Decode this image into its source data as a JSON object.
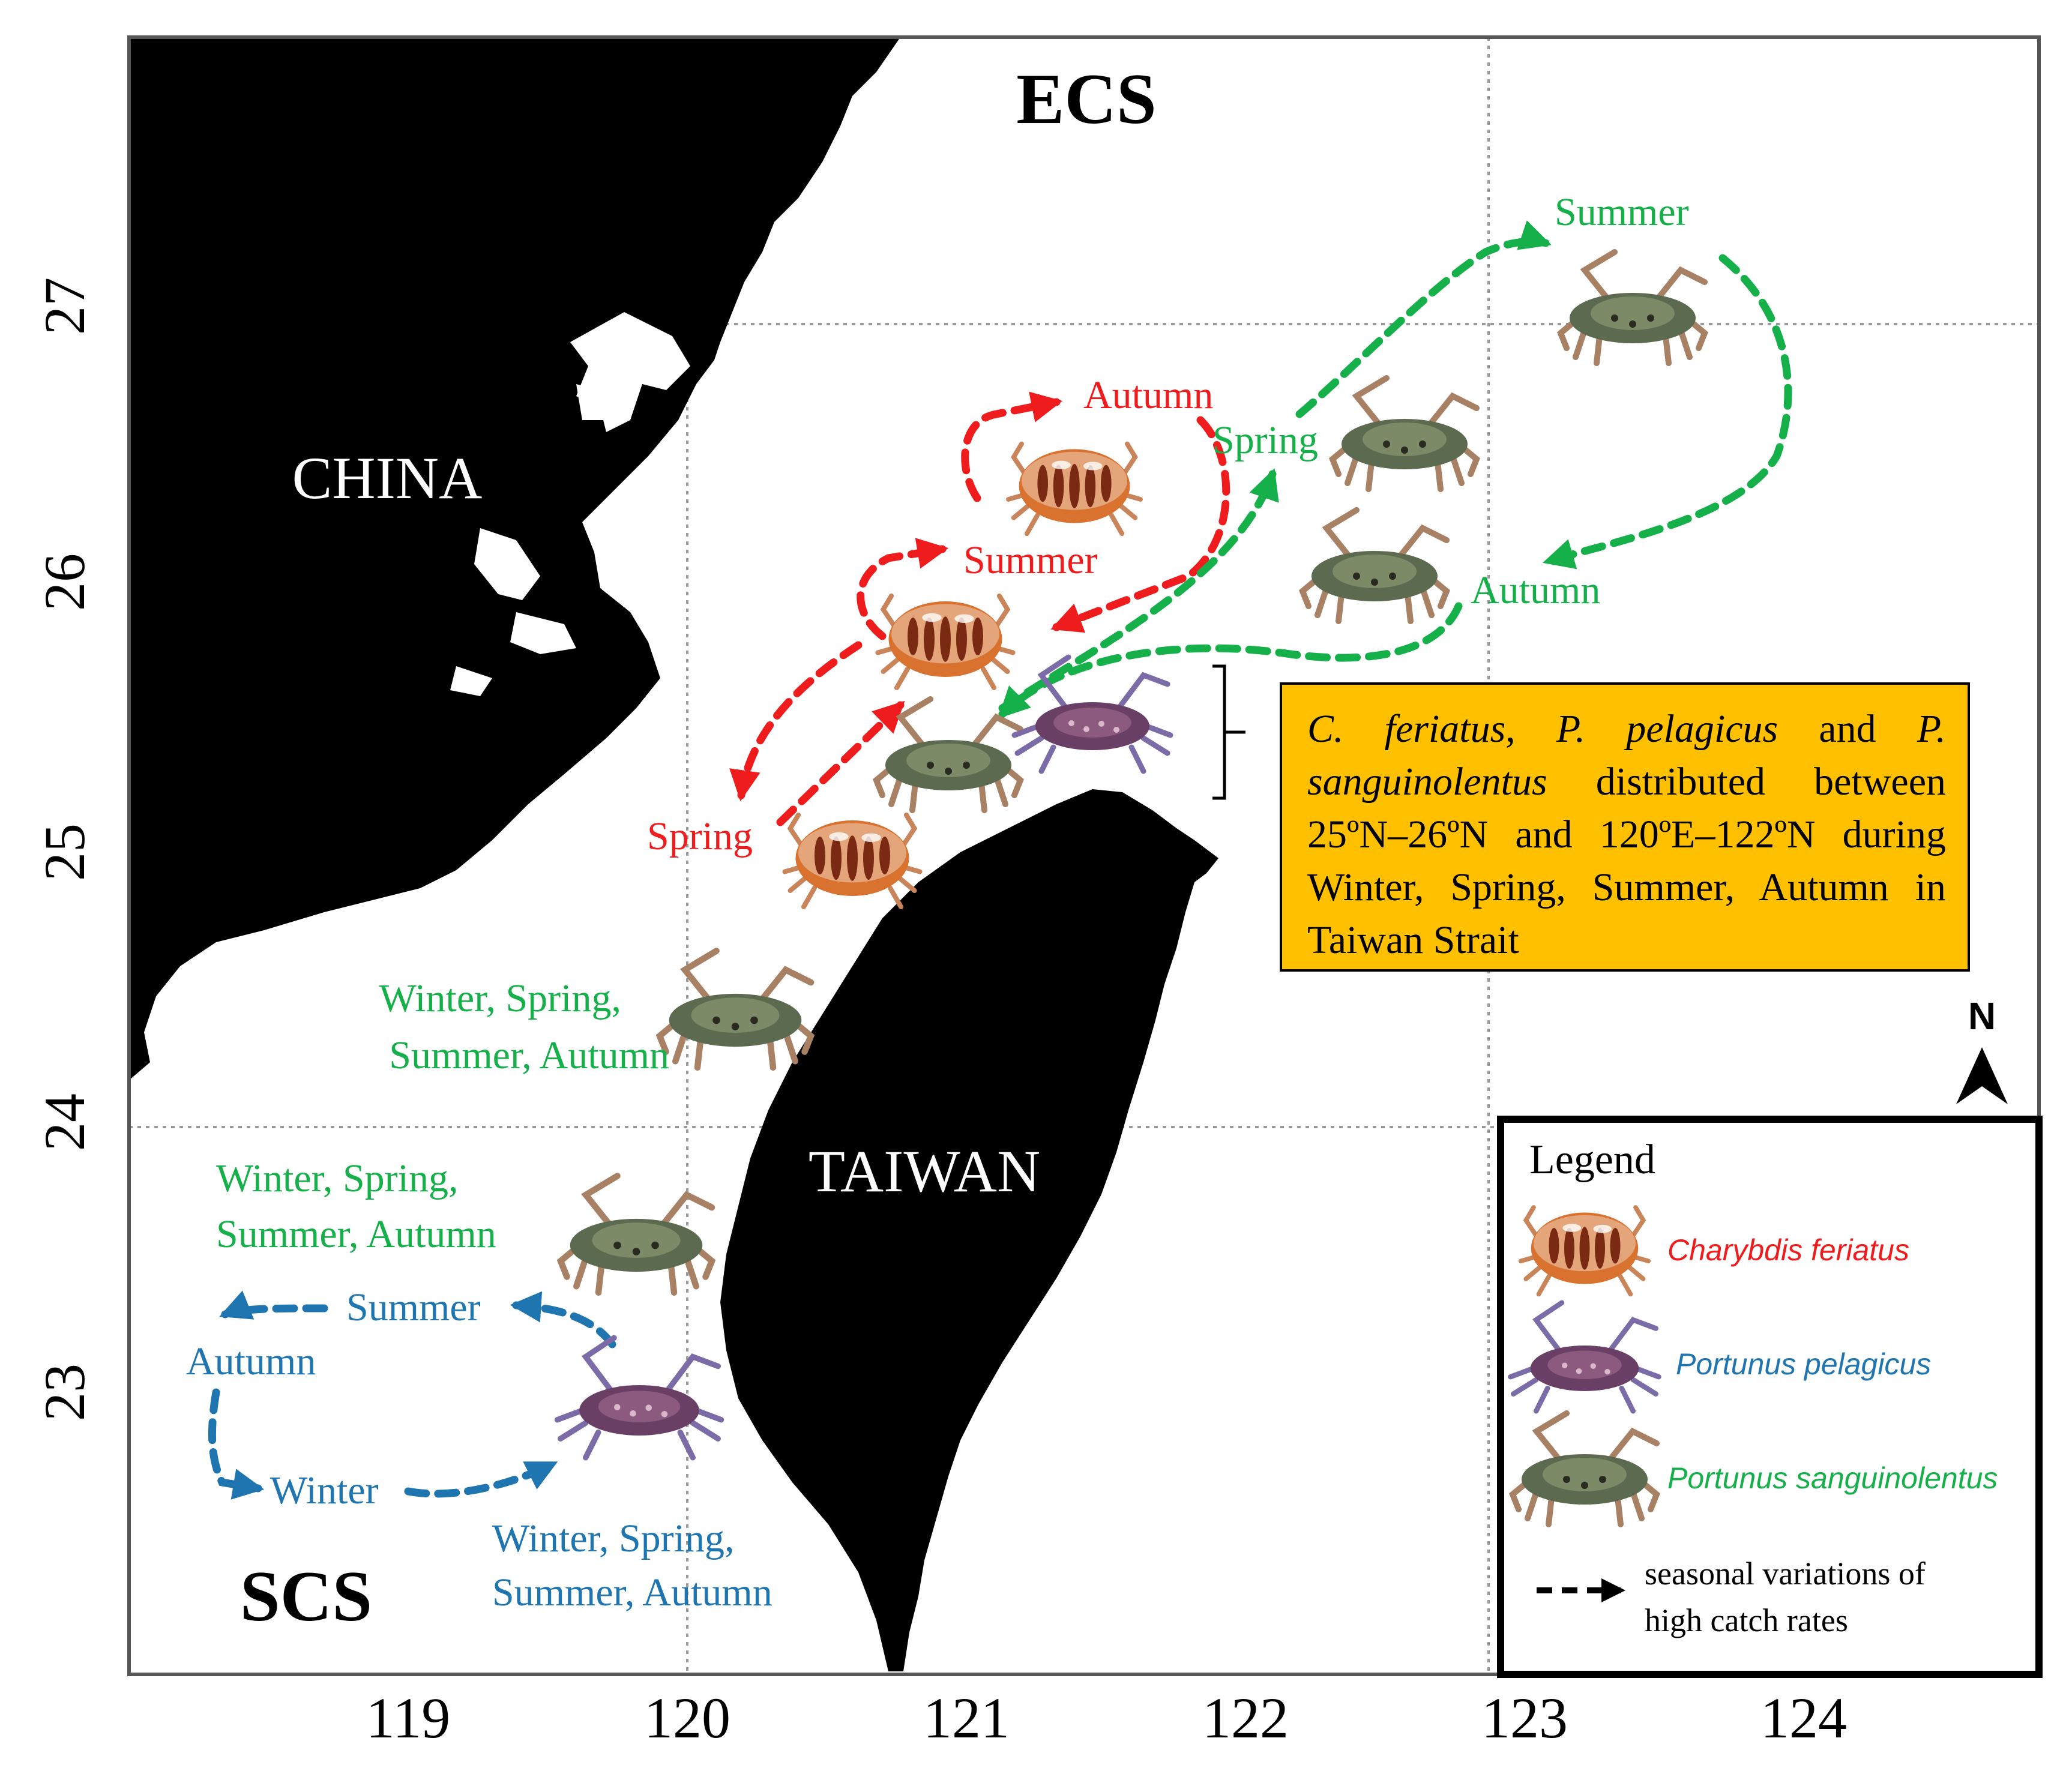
{
  "map": {
    "sea_labels": {
      "north": "ECS",
      "south": "SCS"
    },
    "land_labels": {
      "mainland": "CHINA",
      "island": "TAIWAN"
    },
    "axes": {
      "x_ticks": [
        "119",
        "120",
        "121",
        "122",
        "123",
        "124"
      ],
      "y_ticks": [
        "27",
        "26",
        "25",
        "24",
        "23"
      ]
    },
    "north_arrow": {
      "label": "N"
    },
    "colors": {
      "charybdis": "#EE1C1C",
      "pelagicus": "#1F75B0",
      "sanguinolentus": "#16B04A",
      "land": "#000000",
      "callout_fill": "#FFC000",
      "grid": "#9A9A9A"
    }
  },
  "labels": {
    "red": {
      "autumn": "Autumn",
      "summer": "Summer",
      "spring": "Spring"
    },
    "green": {
      "summer": "Summer",
      "spring": "Spring",
      "autumn": "Autumn",
      "mid_line1": "Winter, Spring,",
      "mid_line2": "Summer, Autumn",
      "south_line1": "Winter, Spring,",
      "south_line2": "Summer, Autumn"
    },
    "blue": {
      "summer": "Summer",
      "autumn": "Autumn",
      "winter": "Winter",
      "all_line1": "Winter, Spring,",
      "all_line2": "Summer, Autumn"
    }
  },
  "callout": {
    "species1": "C. feriatus",
    "sep1": ", ",
    "species2": "P. pelagicus",
    "sep2": " and ",
    "species3": "P. sanguinolentus",
    "body": " distributed between 25ºN–26ºN and 120ºE–122ºN during Winter, Spring, Summer, Autumn in Taiwan Strait"
  },
  "legend": {
    "title": "Legend",
    "items": [
      {
        "label": "Charybdis feriatus",
        "icon": "charybdis-crab-icon"
      },
      {
        "label": "Portunus pelagicus",
        "icon": "blue-swimming-crab-icon"
      },
      {
        "label": "Portunus sanguinolentus",
        "icon": "three-spot-crab-icon"
      }
    ],
    "arrow_line1": "seasonal variations  of",
    "arrow_line2": "high  catch rates"
  }
}
